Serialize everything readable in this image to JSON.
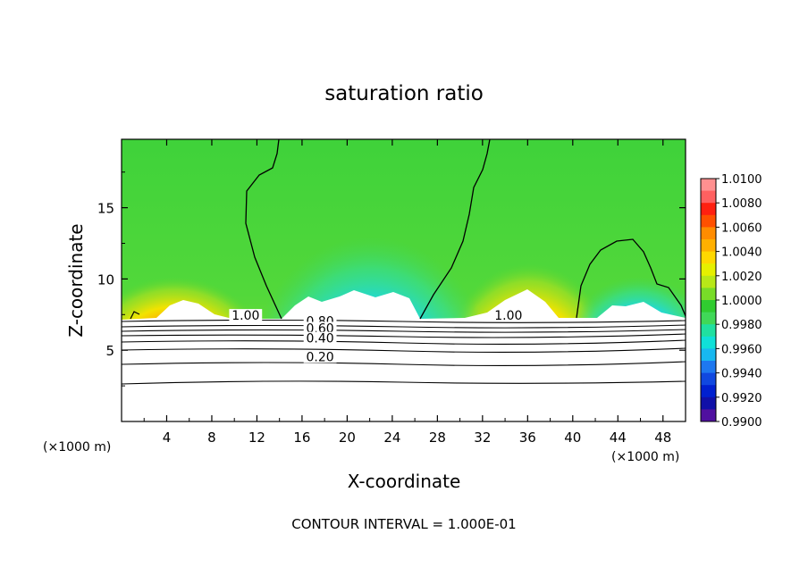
{
  "chart_data": {
    "type": "heatmap",
    "title": "saturation ratio",
    "xlabel": "X-coordinate",
    "ylabel": "Z-coordinate",
    "x_unit_left": "(×1000 m)",
    "x_unit_right": "(×1000 m)",
    "xlim": [
      0,
      50
    ],
    "ylim": [
      0,
      19.8
    ],
    "x_ticks": [
      4,
      8,
      12,
      16,
      20,
      24,
      28,
      32,
      36,
      40,
      44,
      48
    ],
    "y_ticks": [
      5,
      10,
      15
    ],
    "colorbar": {
      "levels": [
        0.99,
        0.992,
        0.994,
        0.996,
        0.998,
        1.0,
        1.002,
        1.004,
        1.006,
        1.008,
        1.01
      ],
      "labels": [
        "1.0100",
        "1.0080",
        "1.0060",
        "1.0040",
        "1.0020",
        "1.0000",
        "0.9980",
        "0.9960",
        "0.9940",
        "0.9920",
        "0.9900"
      ]
    },
    "contour_labels": [
      {
        "text": "1.00",
        "x": 11.0,
        "z": 7.2
      },
      {
        "text": "1.00",
        "x": 34.3,
        "z": 7.2
      },
      {
        "text": "0.80",
        "x": 17.6,
        "z": 6.8
      },
      {
        "text": "0.60",
        "x": 17.6,
        "z": 6.3
      },
      {
        "text": "0.40",
        "x": 17.6,
        "z": 5.6
      },
      {
        "text": "0.20",
        "x": 17.6,
        "z": 4.3
      }
    ],
    "footer": "CONTOUR INTERVAL = 1.000E-01"
  }
}
